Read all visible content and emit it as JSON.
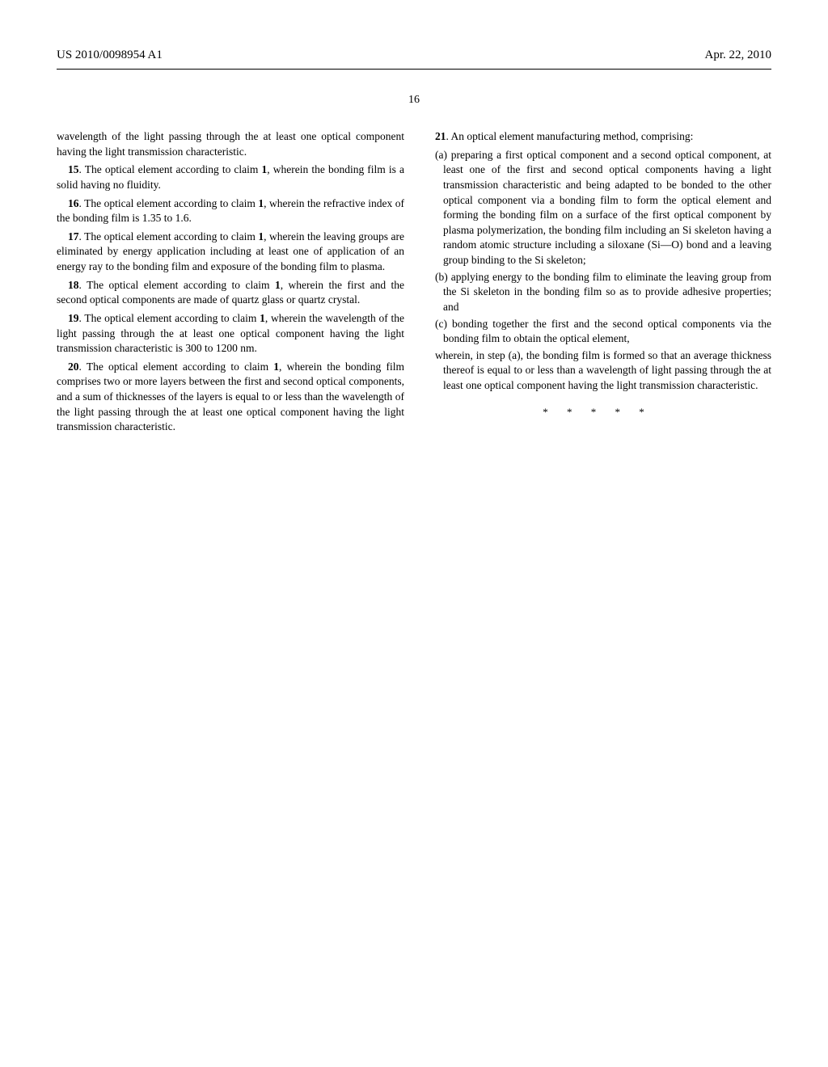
{
  "header": {
    "pub_number": "US 2010/0098954 A1",
    "date": "Apr. 22, 2010"
  },
  "page_number": "16",
  "left_column": {
    "continuation": "wavelength of the light passing through the at least one optical component having the light transmission characteristic.",
    "claim15_num": "15",
    "claim15_text": ". The optical element according to claim ",
    "claim15_ref": "1",
    "claim15_rest": ", wherein the bonding film is a solid having no fluidity.",
    "claim16_num": "16",
    "claim16_text": ". The optical element according to claim ",
    "claim16_ref": "1",
    "claim16_rest": ", wherein the refractive index of the bonding film is 1.35 to 1.6.",
    "claim17_num": "17",
    "claim17_text": ". The optical element according to claim ",
    "claim17_ref": "1",
    "claim17_rest": ", wherein the leaving groups are eliminated by energy application including at least one of application of an energy ray to the bonding film and exposure of the bonding film to plasma.",
    "claim18_num": "18",
    "claim18_text": ". The optical element according to claim ",
    "claim18_ref": "1",
    "claim18_rest": ", wherein the first and the second optical components are made of quartz glass or quartz crystal.",
    "claim19_num": "19",
    "claim19_text": ". The optical element according to claim ",
    "claim19_ref": "1",
    "claim19_rest": ", wherein the wavelength of the light passing through the at least one optical component having the light transmission characteristic is 300 to 1200 nm.",
    "claim20_num": "20",
    "claim20_text": ". The optical element according to claim ",
    "claim20_ref": "1",
    "claim20_rest": ", wherein the bonding film comprises two or more layers between the first and second optical components, and a sum of thicknesses of the layers is equal to or less than the wavelength of the light passing through the at least one optical component having the light transmission characteristic."
  },
  "right_column": {
    "claim21_num": "21",
    "claim21_text": ". An optical element manufacturing method, comprising:",
    "step_a": "(a) preparing a first optical component and a second optical component, at least one of the first and second optical components having a light transmission characteristic and being adapted to be bonded to the other optical component via a bonding film to form the optical element and forming the bonding film on a surface of the first optical component by plasma polymerization, the bonding film including an Si skeleton having a random atomic structure including a siloxane (Si—O) bond and a leaving group binding to the Si skeleton;",
    "step_b": "(b) applying energy to the bonding film to eliminate the leaving group from the Si skeleton in the bonding film so as to provide adhesive properties; and",
    "step_c": "(c) bonding together the first and the second optical components via the bonding film to obtain the optical element,",
    "wherein": "wherein, in step (a), the bonding film is formed so that an average thickness thereof is equal to or less than a wavelength of light passing through the at least one optical component having the light transmission characteristic."
  },
  "closing_marks": "* * * * *"
}
